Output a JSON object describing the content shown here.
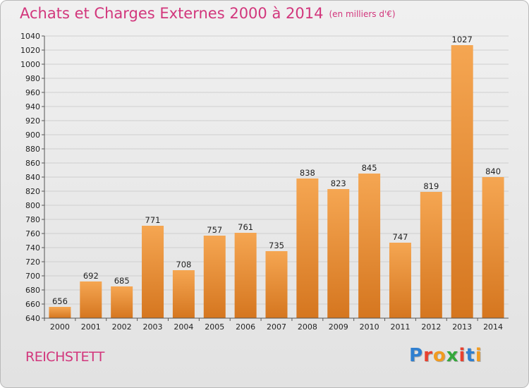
{
  "header": {
    "title": "Achats et Charges Externes 2000 à 2014",
    "unit": "(en milliers d'€)"
  },
  "footer": {
    "town": "REICHSTETT",
    "logo": "Proxiti"
  },
  "colors": {
    "title": "#d2367c",
    "bar_light": "#f5a652",
    "bar_dark": "#d5761f",
    "logo": [
      "#2f7fd0",
      "#e8412f",
      "#f29b1f",
      "#35a83c",
      "#e8412f",
      "#2f7fd0",
      "#f29b1f"
    ]
  },
  "chart_data": {
    "type": "bar",
    "categories": [
      "2000",
      "2001",
      "2002",
      "2003",
      "2004",
      "2005",
      "2006",
      "2007",
      "2008",
      "2009",
      "2010",
      "2011",
      "2012",
      "2013",
      "2014"
    ],
    "values": [
      656,
      692,
      685,
      771,
      708,
      757,
      761,
      735,
      838,
      823,
      845,
      747,
      819,
      1027,
      840
    ],
    "ylim": [
      640,
      1040
    ],
    "ytick_step": 20,
    "grid": true
  }
}
